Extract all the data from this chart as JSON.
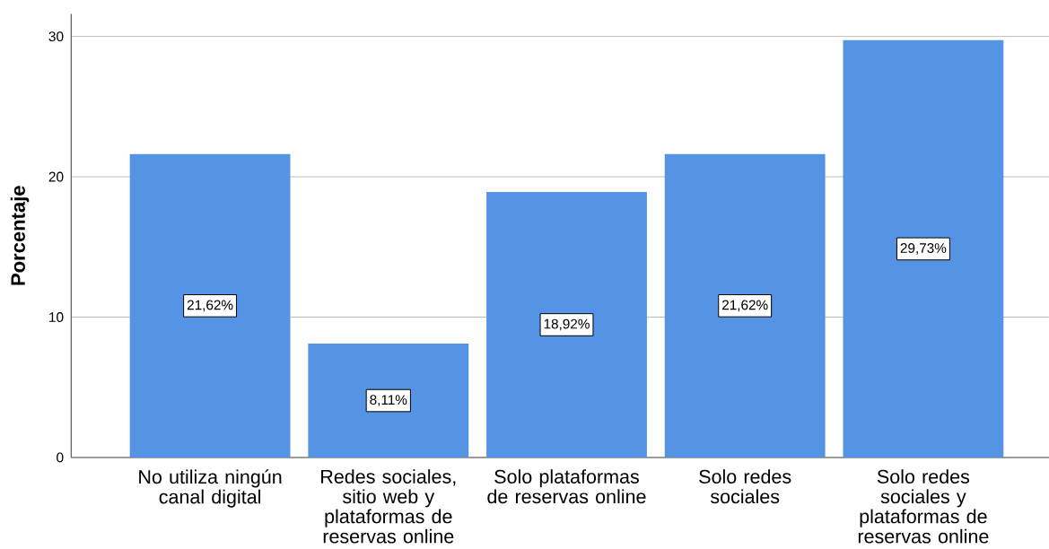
{
  "chart_data": {
    "type": "bar",
    "ylabel": "Porcentaje",
    "categories": [
      "No utiliza ningún canal digital",
      "Redes sociales, sitio web y plataformas de reservas online",
      "Solo plataformas de reservas online",
      "Solo redes sociales",
      "Solo redes sociales y plataformas de reservas online"
    ],
    "values": [
      21.62,
      8.11,
      18.92,
      21.62,
      29.73
    ],
    "value_labels": [
      "21,62%",
      "8,11%",
      "18,92%",
      "21,62%",
      "29,73%"
    ],
    "color": "#5594e4",
    "ylim": [
      0,
      31.6
    ],
    "yticks": [
      0,
      10,
      20,
      30
    ],
    "grid": "y"
  }
}
